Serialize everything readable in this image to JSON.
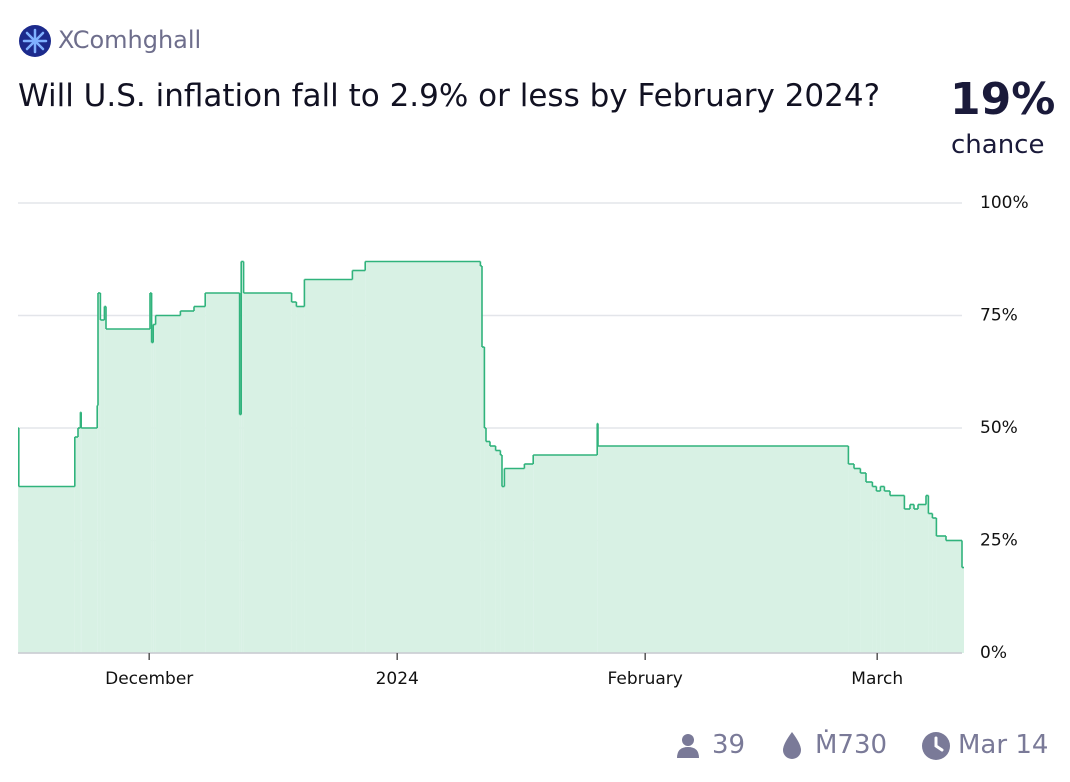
{
  "header": {
    "author": "XComhghall",
    "title": "Will U.S. inflation fall to 2.9% or less by February 2024?",
    "probability": "19%",
    "probability_caption": "chance"
  },
  "chart_data": {
    "type": "step",
    "x": [
      -16.4,
      -16.3,
      -9.3,
      -8.9,
      -8.6,
      -8.5,
      -6.5,
      -6.4,
      -6.1,
      -5.6,
      -5.4,
      0.1,
      0.3,
      0.5,
      0.8,
      3.9,
      5.6,
      7,
      11.3,
      11.5,
      11.8,
      17.8,
      18.4,
      19.4,
      25.4,
      27,
      41.4,
      41.6,
      41.9,
      42.1,
      42.6,
      43.3,
      43.9,
      44.1,
      44.4,
      46.9,
      48,
      56,
      56.1,
      87.4,
      88.1,
      88.9,
      89.6,
      90.4,
      90.9,
      91.4,
      91.9,
      92.6,
      94.4,
      95.1,
      95.6,
      96.1,
      97.1,
      97.4,
      97.9,
      98.4,
      99.6,
      101.6
    ],
    "values": [
      50,
      37,
      48,
      50,
      53.5,
      50,
      55,
      80,
      74,
      77,
      72,
      80,
      69,
      73,
      75,
      76,
      77,
      80,
      53,
      87,
      80,
      78,
      77,
      83,
      85,
      87,
      86,
      68,
      50,
      47,
      46,
      45,
      44,
      37,
      41,
      42,
      44,
      51,
      46,
      42,
      41,
      40,
      38,
      37,
      36,
      37,
      36,
      35,
      32,
      33,
      32,
      33,
      35,
      31,
      30,
      26,
      25,
      19
    ],
    "color": "#30b37c",
    "fill": "#d8f1e4",
    "xlim": [
      -16.4,
      101.6
    ],
    "xticks": [
      {
        "value": 0,
        "label": "December"
      },
      {
        "value": 31,
        "label": "2024"
      },
      {
        "value": 62,
        "label": "February"
      },
      {
        "value": 91,
        "label": "March"
      }
    ],
    "ylim": [
      0,
      100
    ],
    "yticks": [
      {
        "value": 0,
        "label": "0%"
      },
      {
        "value": 25,
        "label": "25%"
      },
      {
        "value": 50,
        "label": "50%"
      },
      {
        "value": 75,
        "label": "75%"
      },
      {
        "value": 100,
        "label": "100%"
      }
    ],
    "grid": true
  },
  "footer": {
    "traders": "39",
    "volume": "Ṁ730",
    "close_date": "Mar 14"
  }
}
